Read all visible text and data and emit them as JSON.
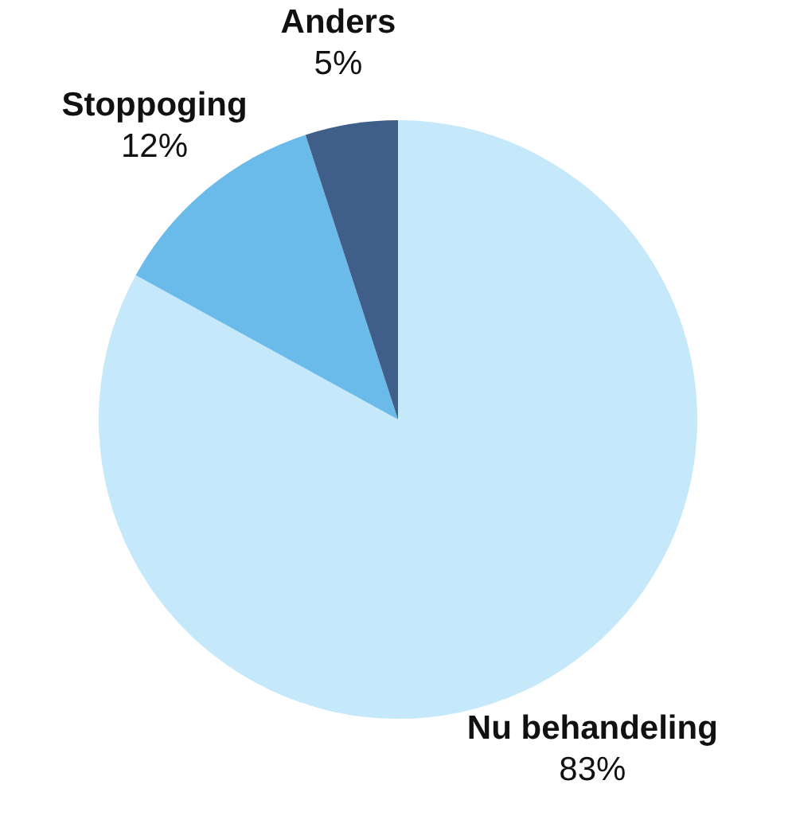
{
  "chart_data": {
    "type": "pie",
    "categories": [
      "Nu behandeling",
      "Stoppoging",
      "Anders"
    ],
    "values": [
      83,
      12,
      5
    ],
    "colors": [
      "#c5e8fb",
      "#6bbbea",
      "#3f5f8a"
    ],
    "value_labels": [
      "83%",
      "12%",
      "5%"
    ]
  }
}
